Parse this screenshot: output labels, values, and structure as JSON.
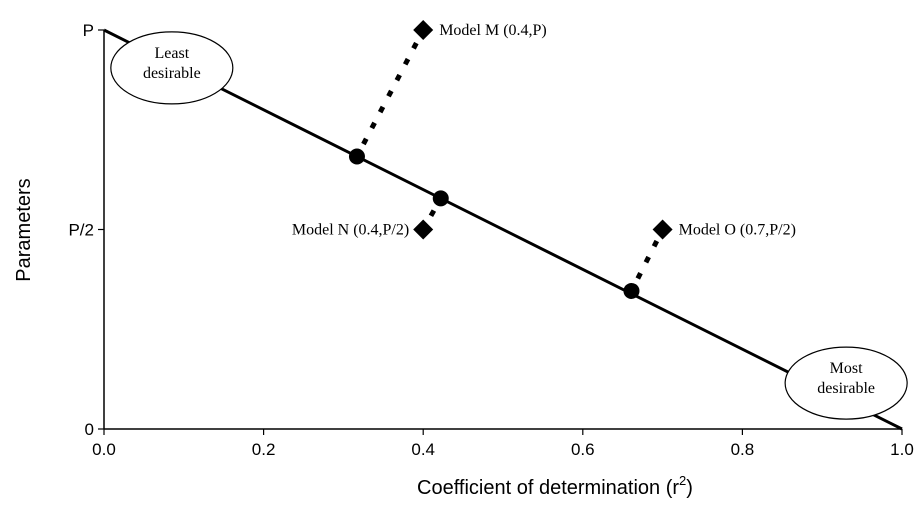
{
  "chart_data": {
    "type": "scatter",
    "xlabel": "Coefficient of determination (r",
    "xlabel_sup": "2",
    "xlabel_close": ")",
    "ylabel": "Parameters",
    "xlim": [
      0,
      1
    ],
    "ylim": [
      0,
      1
    ],
    "x_ticks": [
      {
        "value": 0.0,
        "label": "0.0"
      },
      {
        "value": 0.2,
        "label": "0.2"
      },
      {
        "value": 0.4,
        "label": "0.4"
      },
      {
        "value": 0.6,
        "label": "0.6"
      },
      {
        "value": 0.8,
        "label": "0.8"
      },
      {
        "value": 1.0,
        "label": "1.0"
      }
    ],
    "y_ticks": [
      {
        "value": 0,
        "label": "0"
      },
      {
        "value": 0.5,
        "label": "P/2"
      },
      {
        "value": 1,
        "label": "P"
      }
    ],
    "y_unit": "P",
    "trade_off_line": {
      "from": [
        0,
        1
      ],
      "to": [
        1,
        0
      ]
    },
    "models": [
      {
        "label": "Model M (0.4,P)",
        "x": 0.4,
        "y": 1.0,
        "projection": [
          0.317,
          0.683
        ]
      },
      {
        "label": "Model N (0.4,P/2)",
        "x": 0.4,
        "y": 0.5,
        "projection": [
          0.422,
          0.578
        ],
        "label_side": "left"
      },
      {
        "label": "Model O (0.7,P/2)",
        "x": 0.7,
        "y": 0.5,
        "projection": [
          0.661,
          0.346
        ]
      }
    ],
    "annotations": [
      {
        "lines": [
          "Least",
          "desirable"
        ],
        "x": 0.085,
        "y": 0.905
      },
      {
        "lines": [
          "Most",
          "desirable"
        ],
        "x": 0.93,
        "y": 0.115
      }
    ]
  }
}
